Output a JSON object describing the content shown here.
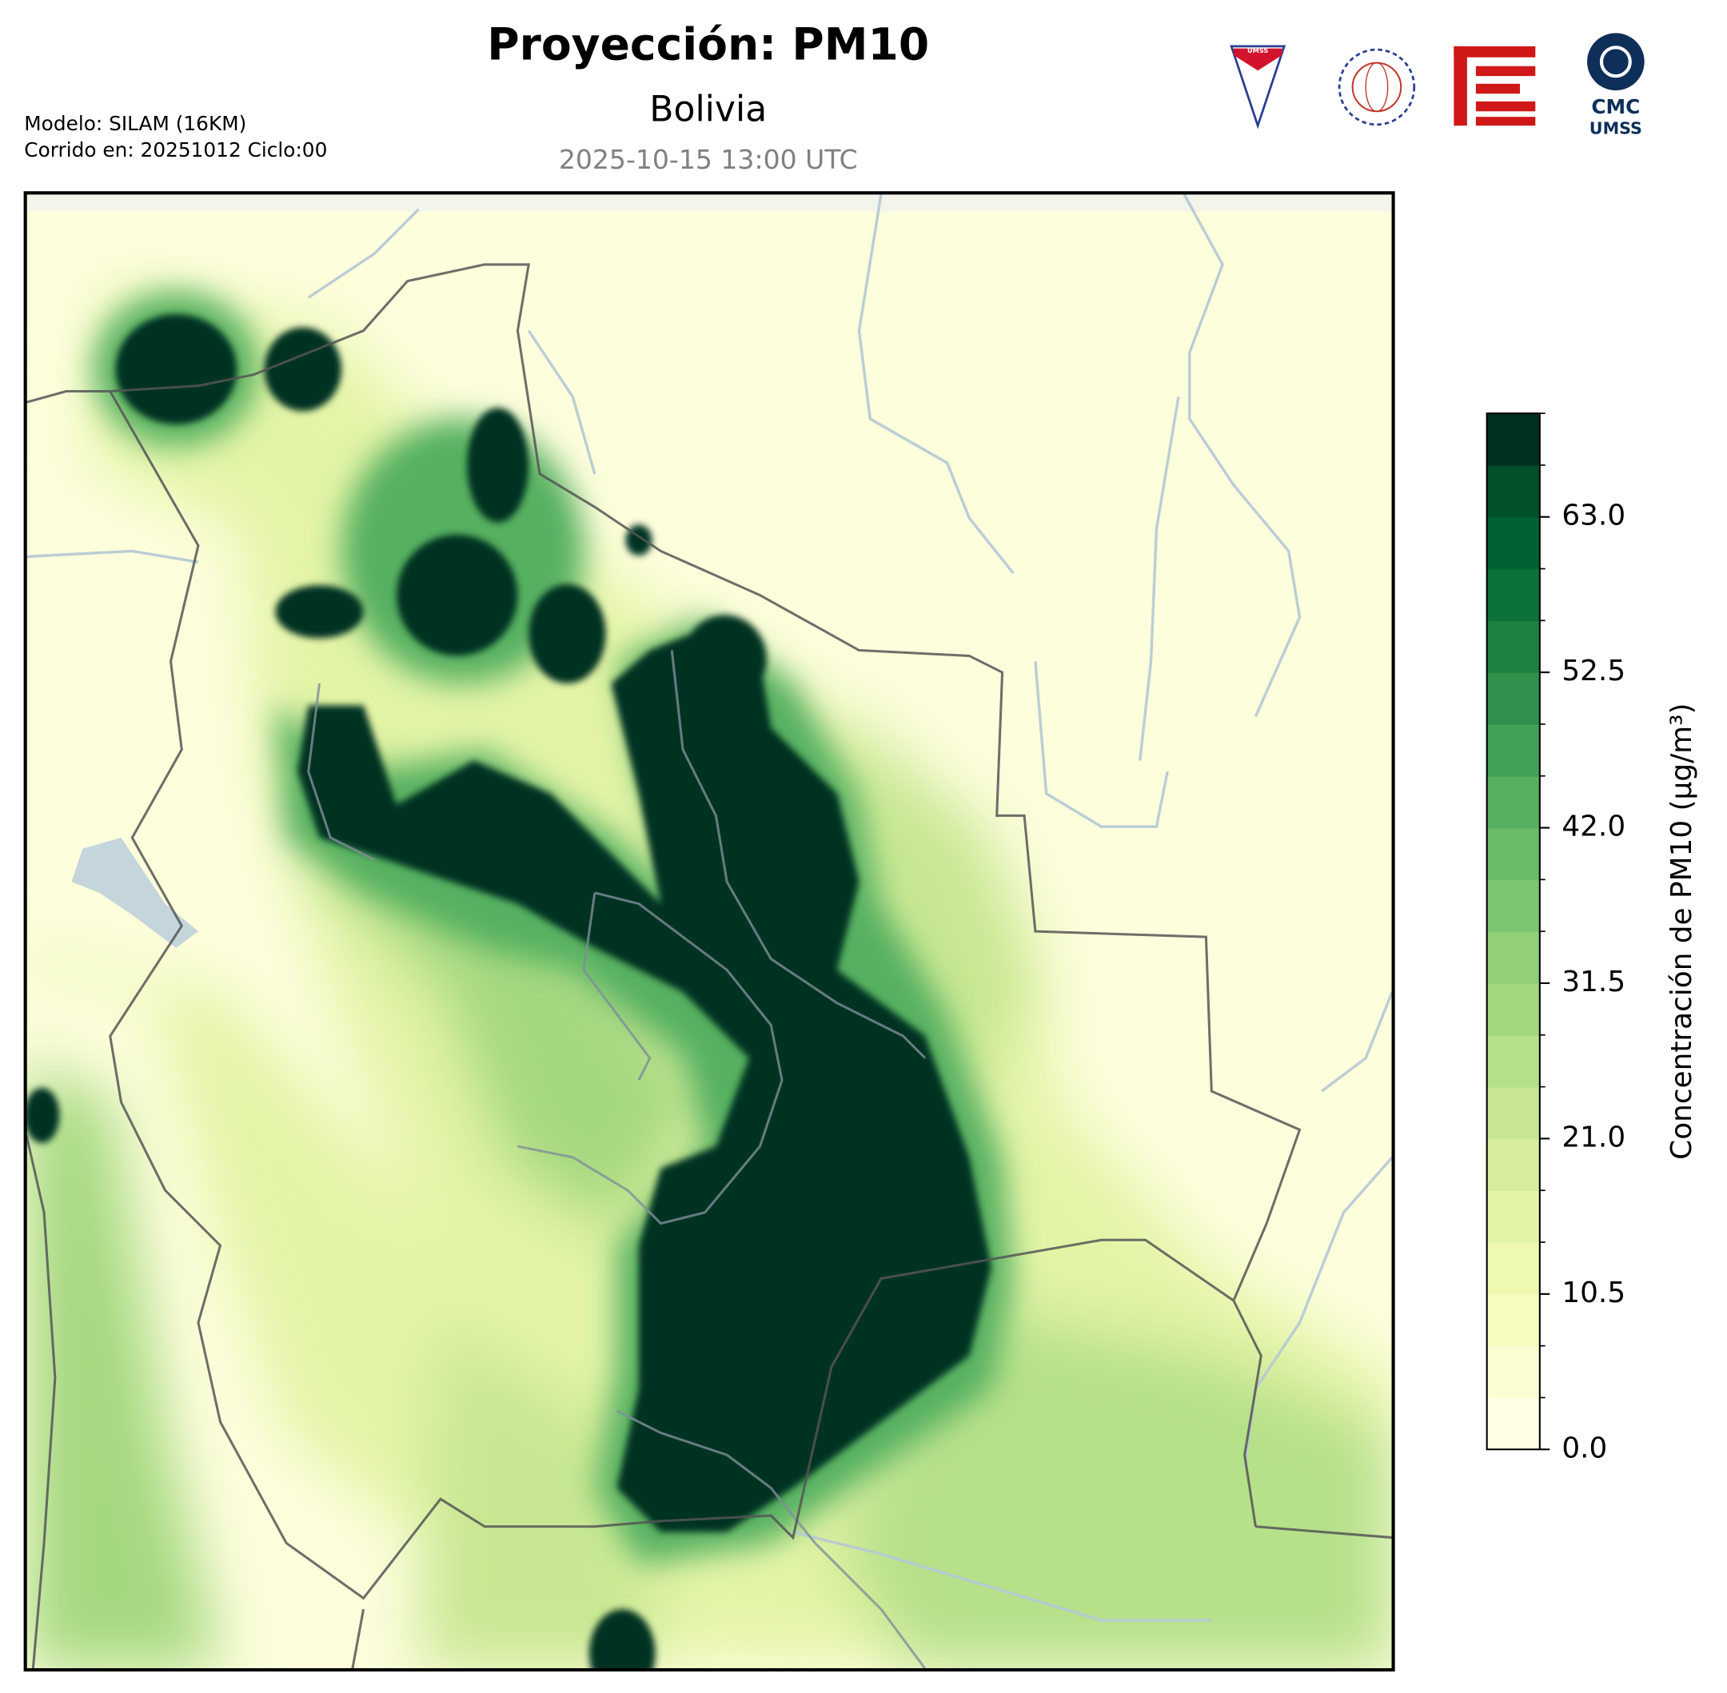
{
  "header": {
    "title": "Proyección: PM10",
    "subtitle": "Bolivia",
    "timestamp": "2025-10-15 13:00 UTC",
    "model_info": [
      "Modelo: SILAM (16KM)",
      "Corrido en: 20251012 Ciclo:00"
    ]
  },
  "logos": {
    "shield_text": "UMSS",
    "cmc_line1": "CMC",
    "cmc_line2": "UMSS"
  },
  "colorbar": {
    "label": "Concentración de PM10 (μg/m³)",
    "lim": [
      0,
      70
    ],
    "ticks": [
      {
        "value": 0,
        "label": "0.0"
      },
      10.5,
      {
        "value": 21,
        "label": "21.0"
      },
      31.5,
      {
        "value": 42,
        "label": "42.0"
      },
      52.5,
      {
        "value": 63,
        "label": "63.0"
      }
    ],
    "levels": [
      0,
      3.5,
      7,
      10.5,
      14,
      17.5,
      21,
      24.5,
      28,
      31.5,
      35,
      38.5,
      42,
      45.5,
      49,
      52.5,
      56,
      59.5,
      63,
      66.5,
      70
    ],
    "colors": [
      "#ffffe5",
      "#fbfdd2",
      "#f7fcc0",
      "#eef8b0",
      "#e3f4a6",
      "#d6ee9c",
      "#c7e792",
      "#b6e089",
      "#a4d87f",
      "#91cf78",
      "#7dc570",
      "#69bb68",
      "#55b060",
      "#41a155",
      "#2f914b",
      "#1e8242",
      "#0d7239",
      "#006233",
      "#00512a",
      "#003020"
    ]
  }
}
